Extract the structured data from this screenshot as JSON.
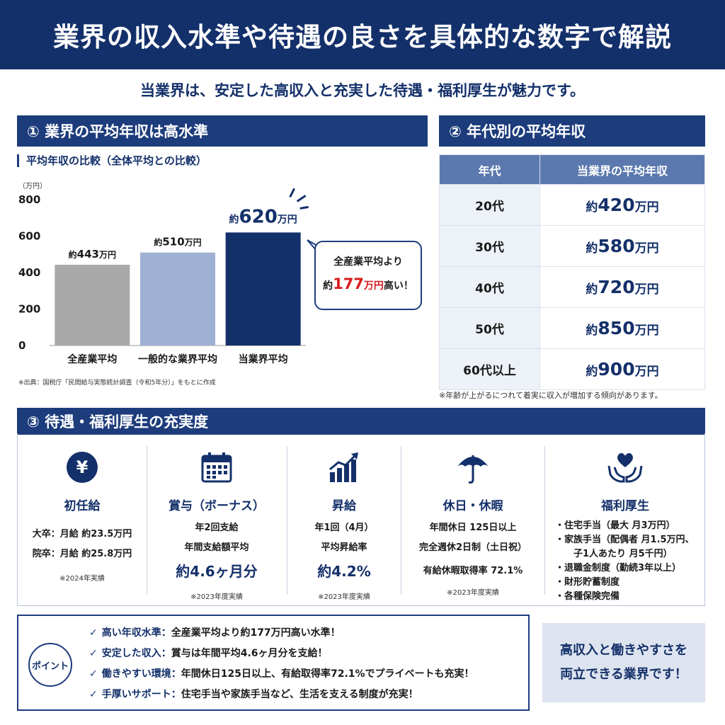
{
  "header": {
    "title": "業界の収入水準や待遇の良さを具体的な数字で解説"
  },
  "subtitle": "当業界は、安定した高収入と充実した待遇・福利厚生が魅力です。",
  "section1": {
    "title": "① 業界の平均年収は高水準",
    "chart_subtitle": "平均年収の比較（全体平均との比較）",
    "source": "※出典：国税庁「民間給与実態統計調査（令和5年分）」をもとに作成",
    "callout": {
      "line1": "全産業平均より",
      "prefix": "約",
      "diff": "177",
      "unit": "万円",
      "suffix": "高い！"
    }
  },
  "chart_data": {
    "type": "bar",
    "title": "平均年収の比較（全体平均との比較）",
    "unit_label": "（万円）",
    "categories": [
      "全産業平均",
      "一般的な業界平均",
      "当業界平均"
    ],
    "values": [
      443,
      510,
      620
    ],
    "value_labels": [
      {
        "prefix": "約",
        "num": "443",
        "unit": "万円"
      },
      {
        "prefix": "約",
        "num": "510",
        "unit": "万円"
      },
      {
        "prefix": "約",
        "num": "620",
        "unit": "万円"
      }
    ],
    "colors": [
      "#a9a9a9",
      "#9fb1d3",
      "#14306a"
    ],
    "yticks": [
      0,
      200,
      400,
      600,
      800
    ],
    "ylim": [
      0,
      800
    ],
    "grid": false
  },
  "section2": {
    "title": "② 年代別の平均年収",
    "headers": [
      "年代",
      "当業界の平均年収"
    ],
    "rows": [
      {
        "age": "20代",
        "prefix": "約",
        "num": "420",
        "unit": "万円"
      },
      {
        "age": "30代",
        "prefix": "約",
        "num": "580",
        "unit": "万円"
      },
      {
        "age": "40代",
        "prefix": "約",
        "num": "720",
        "unit": "万円"
      },
      {
        "age": "50代",
        "prefix": "約",
        "num": "850",
        "unit": "万円"
      },
      {
        "age": "60代以上",
        "prefix": "約",
        "num": "900",
        "unit": "万円"
      }
    ],
    "note": "※年齢が上がるにつれて着実に収入が増加する傾向があります。"
  },
  "section3": {
    "title": "③ 待遇・福利厚生の充実度",
    "starting": {
      "icon": "yen-icon",
      "title": "初任給",
      "line1": "大卒：月給 約23.5万円",
      "line2": "院卒：月給 約25.8万円",
      "foot": "※2024年実績"
    },
    "bonus": {
      "icon": "calendar-icon",
      "title": "賞与（ボーナス）",
      "line1": "年2回支給",
      "line2": "年間支給額平均",
      "big": "約4.6ヶ月分",
      "foot": "※2023年度実績"
    },
    "raise": {
      "icon": "growth-chart-icon",
      "title": "昇給",
      "line1": "年1回（4月）",
      "line2": "平均昇給率",
      "big": "約4.2%",
      "foot": "※2023年度実績"
    },
    "holiday": {
      "icon": "umbrella-icon",
      "title": "休日・休暇",
      "line1": "年間休日 125日以上",
      "line2": "完全週休2日制（土日祝）",
      "line3": "有給休暇取得率 72.1%",
      "foot": "※2023年度実績"
    },
    "welfare": {
      "icon": "heart-hands-icon",
      "title": "福利厚生",
      "items": [
        "・住宅手当（最大 月3万円）",
        "・家族手当（配偶者 月1.5万円、",
        "子1人あたり 月5千円）",
        "・退職金制度（勤続3年以上）",
        "・財形貯蓄制度",
        "・各種保険完備"
      ]
    }
  },
  "points": {
    "badge": "ポイント",
    "items": [
      {
        "label": "高い年収水準：",
        "text": "全産業平均より約177万円高い水準！"
      },
      {
        "label": "安定した収入：",
        "text": "賞与は年間平均4.6ヶ月分を支給！"
      },
      {
        "label": "働きやすい環境：",
        "text": "年間休日125日以上、有給取得率72.1%でプライベートも充実！"
      },
      {
        "label": "手厚いサポート：",
        "text": "住宅手当や家族手当など、生活を支える制度が充実！"
      }
    ],
    "check": "✓"
  },
  "conclusion": {
    "line1": "高収入と働きやすさを",
    "line2": "両立できる業界です！"
  }
}
